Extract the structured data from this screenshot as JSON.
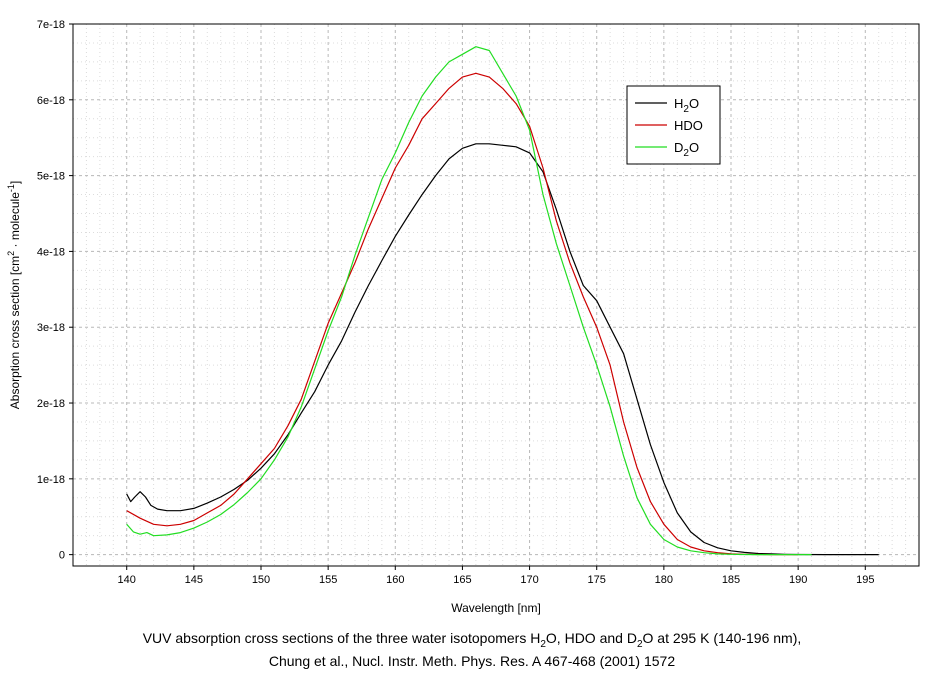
{
  "chart_data": {
    "type": "line",
    "title": "",
    "xlabel": "Wavelength [nm]",
    "ylabel": {
      "main": "Absorption cross section [cm",
      "sup1": "2",
      "mid": " · molecule",
      "sup2": "-1",
      "end": "]"
    },
    "xlim": [
      136,
      199
    ],
    "ylim": [
      -1.5e-19,
      7e-18
    ],
    "x_ticks": [
      140,
      145,
      150,
      155,
      160,
      165,
      170,
      175,
      180,
      185,
      190,
      195
    ],
    "y_ticks": [
      0,
      1e-18,
      2e-18,
      3e-18,
      4e-18,
      5e-18,
      6e-18,
      7e-18
    ],
    "y_tick_labels": [
      "0",
      "1e-18",
      "2e-18",
      "3e-18",
      "4e-18",
      "5e-18",
      "6e-18",
      "7e-18"
    ],
    "grid": true,
    "legend_position": "top-right",
    "series": [
      {
        "name": "H2O",
        "label_main": "H",
        "label_sub": "2",
        "label_end": "O",
        "color": "#000000",
        "x": [
          140,
          140.3,
          140.6,
          141,
          141.4,
          141.8,
          142.3,
          143,
          144,
          145,
          146,
          147,
          148,
          149,
          150,
          151,
          152,
          153,
          154,
          155,
          156,
          157,
          158,
          159,
          160,
          161,
          162,
          163,
          164,
          165,
          166,
          167,
          168,
          169,
          170,
          171,
          172,
          173,
          174,
          175,
          176,
          177,
          178,
          179,
          180,
          181,
          182,
          183,
          184,
          185,
          186,
          187,
          188,
          189,
          190,
          192,
          194,
          196
        ],
        "values": [
          8e-19,
          7e-19,
          7.6e-19,
          8.3e-19,
          7.6e-19,
          6.5e-19,
          6e-19,
          5.8e-19,
          5.8e-19,
          6.1e-19,
          6.8e-19,
          7.6e-19,
          8.6e-19,
          9.8e-19,
          1.14e-18,
          1.33e-18,
          1.58e-18,
          1.87e-18,
          2.15e-18,
          2.5e-18,
          2.82e-18,
          3.2e-18,
          3.55e-18,
          3.88e-18,
          4.2e-18,
          4.48e-18,
          4.75e-18,
          5e-18,
          5.22e-18,
          5.36e-18,
          5.42e-18,
          5.42e-18,
          5.4e-18,
          5.38e-18,
          5.3e-18,
          5.05e-18,
          4.55e-18,
          4e-18,
          3.55e-18,
          3.35e-18,
          3e-18,
          2.65e-18,
          2.05e-18,
          1.45e-18,
          9.5e-19,
          5.5e-19,
          3e-19,
          1.6e-19,
          9e-20,
          5e-20,
          3e-20,
          1.5e-20,
          1e-20,
          5e-21,
          2e-21,
          0,
          0,
          0
        ]
      },
      {
        "name": "HDO",
        "label_main": "HDO",
        "label_sub": "",
        "label_end": "",
        "color": "#cc0000",
        "x": [
          140,
          141,
          142,
          143,
          144,
          145,
          146,
          147,
          148,
          149,
          150,
          151,
          152,
          153,
          154,
          155,
          156,
          157,
          158,
          159,
          160,
          161,
          162,
          163,
          164,
          165,
          166,
          167,
          168,
          169,
          170,
          171,
          172,
          173,
          174,
          175,
          176,
          177,
          178,
          179,
          180,
          181,
          182,
          183,
          184,
          185,
          186,
          187,
          188,
          189,
          190
        ],
        "values": [
          5.8e-19,
          4.8e-19,
          4e-19,
          3.8e-19,
          4e-19,
          4.5e-19,
          5.5e-19,
          6.5e-19,
          8e-19,
          1e-18,
          1.2e-18,
          1.4e-18,
          1.7e-18,
          2.05e-18,
          2.55e-18,
          3.05e-18,
          3.45e-18,
          3.85e-18,
          4.3e-18,
          4.7e-18,
          5.1e-18,
          5.4e-18,
          5.75e-18,
          5.95e-18,
          6.15e-18,
          6.3e-18,
          6.35e-18,
          6.3e-18,
          6.15e-18,
          5.95e-18,
          5.65e-18,
          5.1e-18,
          4.4e-18,
          3.85e-18,
          3.4e-18,
          3e-18,
          2.5e-18,
          1.75e-18,
          1.15e-18,
          7e-19,
          4e-19,
          2e-19,
          1e-19,
          5e-20,
          2.5e-20,
          1e-20,
          5e-21,
          2e-21,
          0,
          0,
          0
        ]
      },
      {
        "name": "D2O",
        "label_main": "D",
        "label_sub": "2",
        "label_end": "O",
        "color": "#22dd22",
        "x": [
          140,
          140.5,
          141,
          141.5,
          142,
          143,
          144,
          145,
          146,
          147,
          148,
          149,
          150,
          151,
          152,
          153,
          154,
          155,
          156,
          157,
          158,
          159,
          160,
          161,
          162,
          163,
          164,
          165,
          166,
          167,
          168,
          169,
          170,
          171,
          172,
          173,
          174,
          175,
          176,
          177,
          178,
          179,
          180,
          181,
          182,
          183,
          184,
          185,
          186,
          187,
          188,
          189,
          190,
          191
        ],
        "values": [
          4e-19,
          3e-19,
          2.7e-19,
          2.9e-19,
          2.5e-19,
          2.6e-19,
          2.9e-19,
          3.5e-19,
          4.3e-19,
          5.3e-19,
          6.6e-19,
          8.2e-19,
          1e-18,
          1.25e-18,
          1.55e-18,
          1.95e-18,
          2.45e-18,
          2.95e-18,
          3.4e-18,
          3.95e-18,
          4.45e-18,
          4.95e-18,
          5.3e-18,
          5.7e-18,
          6.05e-18,
          6.3e-18,
          6.5e-18,
          6.6e-18,
          6.7e-18,
          6.65e-18,
          6.35e-18,
          6.05e-18,
          5.6e-18,
          4.75e-18,
          4.1e-18,
          3.55e-18,
          3e-18,
          2.5e-18,
          1.95e-18,
          1.3e-18,
          7.5e-19,
          4e-19,
          2e-19,
          1e-19,
          5e-20,
          2.5e-20,
          1e-20,
          5e-21,
          2e-21,
          1e-21,
          0,
          0,
          0,
          0
        ]
      }
    ]
  },
  "caption": {
    "line1": {
      "p1": "VUV absorption cross sections of the three water isotopomers H",
      "s1": "2",
      "p2": "O, HDO and D",
      "s2": "2",
      "p3": "O at 295 K (140-196 nm),"
    },
    "line2": "Chung et al., Nucl. Instr. Meth. Phys. Res. A 467-468 (2001) 1572"
  }
}
